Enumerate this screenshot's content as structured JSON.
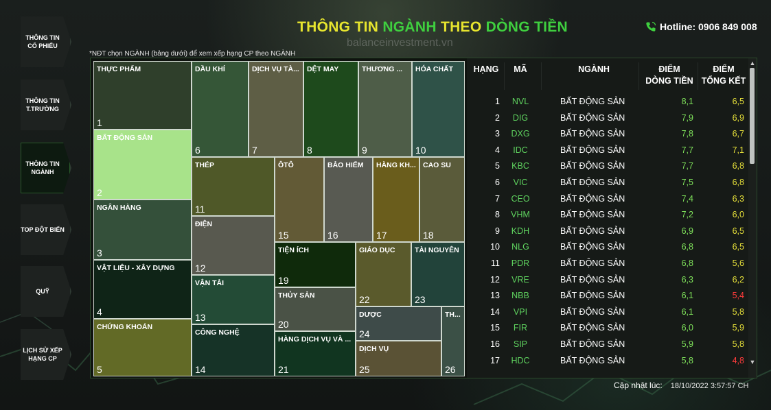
{
  "header": {
    "title_part1": "THÔNG TIN ",
    "title_part2": "NGÀNH ",
    "title_part3": "THEO ",
    "title_part4": "DÒNG TIỀN",
    "watermark": "balanceinvestment.vn",
    "hotline": "Hotline: 0906 849 008"
  },
  "nav": [
    {
      "label": "THÔNG TIN CỔ PHIẾU",
      "active": false
    },
    {
      "label": "THÔNG TIN T.TRƯỜNG",
      "active": false
    },
    {
      "label": "THÔNG TIN NGÀNH",
      "active": true
    },
    {
      "label": "TOP ĐỘT BIẾN",
      "active": false
    },
    {
      "label": "QUỸ",
      "active": false
    },
    {
      "label": "LỊCH SỬ XẾP HẠNG CP",
      "active": false
    }
  ],
  "note": "*NĐT chọn NGÀNH (bảng dưới) để xem xếp hạng CP theo NGÀNH",
  "treemap": [
    {
      "rank": "1",
      "label": "THỰC PHẨM",
      "color": "#2f3f2b"
    },
    {
      "rank": "2",
      "label": "BẤT ĐỘNG SẢN",
      "color": "#a8e38a"
    },
    {
      "rank": "3",
      "label": "NGÂN HÀNG",
      "color": "#34503a"
    },
    {
      "rank": "4",
      "label": "VẬT LIỆU - XÂY DỰNG",
      "color": "#0f2417"
    },
    {
      "rank": "5",
      "label": "CHỨNG KHOÁN",
      "color": "#626a26"
    },
    {
      "rank": "6",
      "label": "DẦU KHÍ",
      "color": "#355637"
    },
    {
      "rank": "7",
      "label": "DỊCH VỤ TÀ...",
      "color": "#5e5e45"
    },
    {
      "rank": "8",
      "label": "DỆT MAY",
      "color": "#1e4a1c"
    },
    {
      "rank": "9",
      "label": "THƯƠNG ...",
      "color": "#4e5d48"
    },
    {
      "rank": "10",
      "label": "HÓA CHẤT",
      "color": "#2f5248"
    },
    {
      "rank": "11",
      "label": "THÉP",
      "color": "#4f5828"
    },
    {
      "rank": "12",
      "label": "ĐIỆN",
      "color": "#58594f"
    },
    {
      "rank": "13",
      "label": "VẬN TẢI",
      "color": "#234b36"
    },
    {
      "rank": "14",
      "label": "CÔNG NGHỆ",
      "color": "#163327"
    },
    {
      "rank": "15",
      "label": "ÔTÔ",
      "color": "#625a36"
    },
    {
      "rank": "16",
      "label": "BẢO HIỂM",
      "color": "#585a52"
    },
    {
      "rank": "17",
      "label": "HÀNG KH...",
      "color": "#6a5d1c"
    },
    {
      "rank": "18",
      "label": "CAO SU",
      "color": "#5a5b3a"
    },
    {
      "rank": "19",
      "label": "TIỆN ÍCH",
      "color": "#0f2a0b"
    },
    {
      "rank": "20",
      "label": "THỦY SẢN",
      "color": "#4a5246"
    },
    {
      "rank": "21",
      "label": "HÀNG DỊCH VỤ VÀ ...",
      "color": "#113520"
    },
    {
      "rank": "22",
      "label": "GIÁO DỤC",
      "color": "#5a5a2c"
    },
    {
      "rank": "23",
      "label": "TÀI NGUYÊN",
      "color": "#22433a"
    },
    {
      "rank": "24",
      "label": "DƯỢC",
      "color": "#3e4b49"
    },
    {
      "rank": "25",
      "label": "DỊCH VỤ",
      "color": "#5a5235"
    },
    {
      "rank": "26",
      "label": "TH...",
      "color": "#3b5046"
    }
  ],
  "table": {
    "headers": {
      "rank": "HẠNG",
      "code": "MÃ",
      "industry": "NGÀNH",
      "flow_line1": "ĐIỂM",
      "flow_line2": "DÒNG TIỀN",
      "total_line1": "ĐIỂM",
      "total_line2": "TỔNG KẾT"
    },
    "rows": [
      {
        "rank": "1",
        "code": "NVL",
        "industry": "BẤT ĐỘNG SẢN",
        "flow": "8,1",
        "total": "6,5",
        "low": false
      },
      {
        "rank": "2",
        "code": "DIG",
        "industry": "BẤT ĐỘNG SẢN",
        "flow": "7,9",
        "total": "6,9",
        "low": false
      },
      {
        "rank": "3",
        "code": "DXG",
        "industry": "BẤT ĐỘNG SẢN",
        "flow": "7,8",
        "total": "6,7",
        "low": false
      },
      {
        "rank": "4",
        "code": "IDC",
        "industry": "BẤT ĐỘNG SẢN",
        "flow": "7,7",
        "total": "7,1",
        "low": false
      },
      {
        "rank": "5",
        "code": "KBC",
        "industry": "BẤT ĐỘNG SẢN",
        "flow": "7,7",
        "total": "6,8",
        "low": false
      },
      {
        "rank": "6",
        "code": "VIC",
        "industry": "BẤT ĐỘNG SẢN",
        "flow": "7,5",
        "total": "6,8",
        "low": false
      },
      {
        "rank": "7",
        "code": "CEO",
        "industry": "BẤT ĐỘNG SẢN",
        "flow": "7,4",
        "total": "6,3",
        "low": false
      },
      {
        "rank": "8",
        "code": "VHM",
        "industry": "BẤT ĐỘNG SẢN",
        "flow": "7,2",
        "total": "6,0",
        "low": false
      },
      {
        "rank": "9",
        "code": "KDH",
        "industry": "BẤT ĐỘNG SẢN",
        "flow": "6,9",
        "total": "6,5",
        "low": false
      },
      {
        "rank": "10",
        "code": "NLG",
        "industry": "BẤT ĐỘNG SẢN",
        "flow": "6,8",
        "total": "6,5",
        "low": false
      },
      {
        "rank": "11",
        "code": "PDR",
        "industry": "BẤT ĐỘNG SẢN",
        "flow": "6,8",
        "total": "5,6",
        "low": false
      },
      {
        "rank": "12",
        "code": "VRE",
        "industry": "BẤT ĐỘNG SẢN",
        "flow": "6,3",
        "total": "6,2",
        "low": false
      },
      {
        "rank": "13",
        "code": "NBB",
        "industry": "BẤT ĐỘNG SẢN",
        "flow": "6,1",
        "total": "5,4",
        "low": true
      },
      {
        "rank": "14",
        "code": "VPI",
        "industry": "BẤT ĐỘNG SẢN",
        "flow": "6,1",
        "total": "5,8",
        "low": false
      },
      {
        "rank": "15",
        "code": "FIR",
        "industry": "BẤT ĐỘNG SẢN",
        "flow": "6,0",
        "total": "5,9",
        "low": false
      },
      {
        "rank": "16",
        "code": "SIP",
        "industry": "BẤT ĐỘNG SẢN",
        "flow": "5,9",
        "total": "5,8",
        "low": false
      },
      {
        "rank": "17",
        "code": "HDC",
        "industry": "BẤT ĐỘNG SẢN",
        "flow": "5,8",
        "total": "4,8",
        "low": true
      }
    ]
  },
  "updated": {
    "label": "Cập nhật lúc:",
    "value": "18/10/2022 3:57:57 CH"
  }
}
